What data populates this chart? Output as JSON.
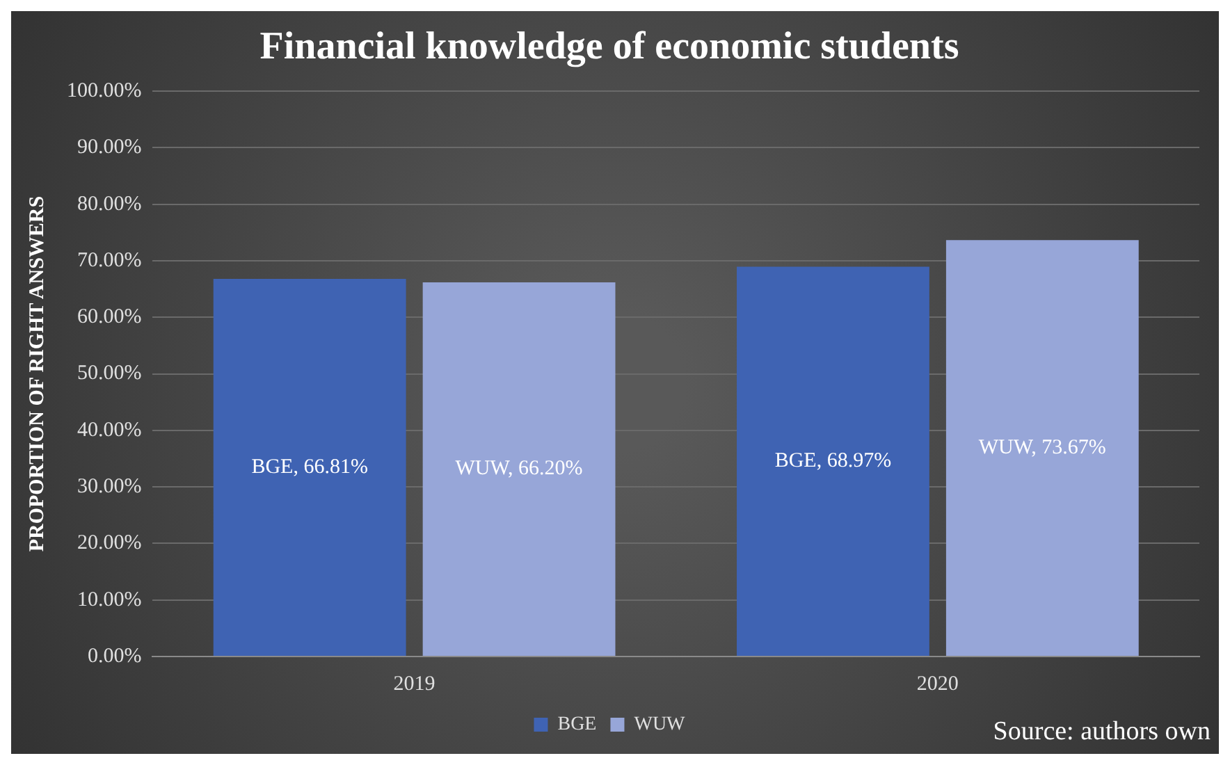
{
  "chart_data": {
    "type": "bar",
    "title": "Financial knowledge of economic students",
    "ylabel": "PROPORTION OF RIGHT ANSWERS",
    "categories": [
      "2019",
      "2020"
    ],
    "series": [
      {
        "name": "BGE",
        "color": "#3f63b3",
        "values": [
          66.81,
          68.97
        ],
        "value_labels": [
          "BGE, 66.81%",
          "BGE, 68.97%"
        ]
      },
      {
        "name": "WUW",
        "color": "#97a6d8",
        "values": [
          66.2,
          73.67
        ],
        "value_labels": [
          "WUW, 66.20%",
          "WUW, 73.67%"
        ]
      }
    ],
    "ylim": [
      0,
      100
    ],
    "yticks": [
      {
        "value": 0,
        "label": "0.00%"
      },
      {
        "value": 10,
        "label": "10.00%"
      },
      {
        "value": 20,
        "label": "20.00%"
      },
      {
        "value": 30,
        "label": "30.00%"
      },
      {
        "value": 40,
        "label": "40.00%"
      },
      {
        "value": 50,
        "label": "50.00%"
      },
      {
        "value": 60,
        "label": "60.00%"
      },
      {
        "value": 70,
        "label": "70.00%"
      },
      {
        "value": 80,
        "label": "80.00%"
      },
      {
        "value": 90,
        "label": "90.00%"
      },
      {
        "value": 100,
        "label": "100.00%"
      }
    ],
    "grid": "y",
    "legend": "bottom",
    "annotations": [
      "Source: authors own"
    ]
  }
}
